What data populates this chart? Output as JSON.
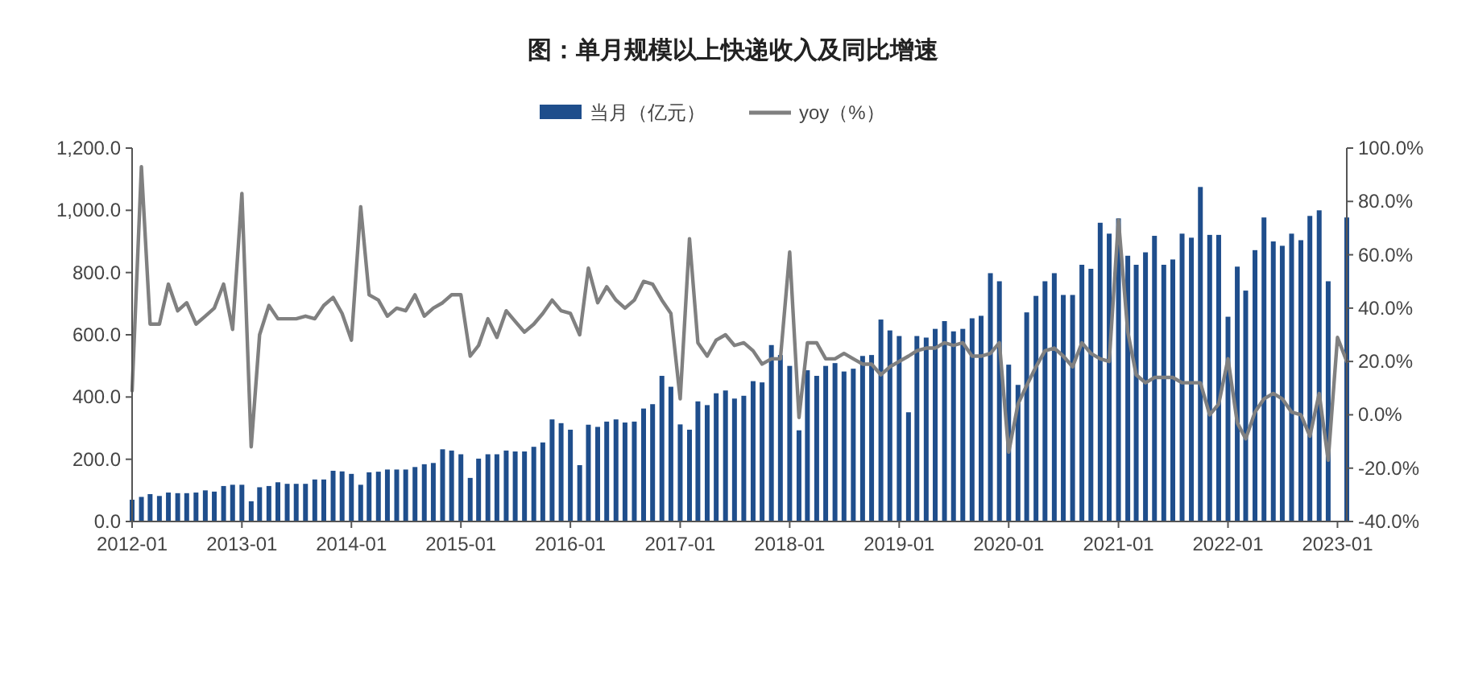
{
  "chart_data": {
    "type": "bar",
    "title": "图：单月规模以上快递收入及同比增速",
    "x": [
      "2012-01",
      "2012-02",
      "2012-03",
      "2012-04",
      "2012-05",
      "2012-06",
      "2012-07",
      "2012-08",
      "2012-09",
      "2012-10",
      "2012-11",
      "2012-12",
      "2013-01",
      "2013-02",
      "2013-03",
      "2013-04",
      "2013-05",
      "2013-06",
      "2013-07",
      "2013-08",
      "2013-09",
      "2013-10",
      "2013-11",
      "2013-12",
      "2014-01",
      "2014-02",
      "2014-03",
      "2014-04",
      "2014-05",
      "2014-06",
      "2014-07",
      "2014-08",
      "2014-09",
      "2014-10",
      "2014-11",
      "2014-12",
      "2015-01",
      "2015-02",
      "2015-03",
      "2015-04",
      "2015-05",
      "2015-06",
      "2015-07",
      "2015-08",
      "2015-09",
      "2015-10",
      "2015-11",
      "2015-12",
      "2016-01",
      "2016-02",
      "2016-03",
      "2016-04",
      "2016-05",
      "2016-06",
      "2016-07",
      "2016-08",
      "2016-09",
      "2016-10",
      "2016-11",
      "2016-12",
      "2017-01",
      "2017-02",
      "2017-03",
      "2017-04",
      "2017-05",
      "2017-06",
      "2017-07",
      "2017-08",
      "2017-09",
      "2017-10",
      "2017-11",
      "2017-12",
      "2018-01",
      "2018-02",
      "2018-03",
      "2018-04",
      "2018-05",
      "2018-06",
      "2018-07",
      "2018-08",
      "2018-09",
      "2018-10",
      "2018-11",
      "2018-12",
      "2019-01",
      "2019-02",
      "2019-03",
      "2019-04",
      "2019-05",
      "2019-06",
      "2019-07",
      "2019-08",
      "2019-09",
      "2019-10",
      "2019-11",
      "2019-12",
      "2020-01",
      "2020-02",
      "2020-03",
      "2020-04",
      "2020-05",
      "2020-06",
      "2020-07",
      "2020-08",
      "2020-09",
      "2020-10",
      "2020-11",
      "2020-12",
      "2021-01",
      "2021-02",
      "2021-03",
      "2021-04",
      "2021-05",
      "2021-06",
      "2021-07",
      "2021-08",
      "2021-09",
      "2021-10",
      "2021-11",
      "2021-12",
      "2022-01",
      "2022-02",
      "2022-03",
      "2022-04",
      "2022-05",
      "2022-06",
      "2022-07",
      "2022-08",
      "2022-09",
      "2022-10",
      "2022-11",
      "2022-12",
      "2023-01",
      "2023-02"
    ],
    "series": [
      {
        "name": "当月（亿元）",
        "color": "#1f4e8c",
        "values": [
          70,
          79,
          88,
          82,
          93,
          91,
          91,
          93,
          100,
          96,
          114,
          118,
          118,
          65,
          110,
          114,
          126,
          121,
          121,
          121,
          135,
          135,
          163,
          161,
          153,
          118,
          158,
          160,
          167,
          167,
          167,
          175,
          184,
          188,
          232,
          228,
          216,
          140,
          202,
          216,
          216,
          228,
          225,
          225,
          240,
          254,
          328,
          316,
          295,
          181,
          311,
          304,
          321,
          328,
          318,
          321,
          363,
          377,
          468,
          433,
          312,
          295,
          386,
          374,
          412,
          421,
          395,
          404,
          451,
          447,
          567,
          535,
          500,
          293,
          486,
          468,
          500,
          509,
          482,
          491,
          532,
          535,
          649,
          614,
          596,
          351,
          596,
          591,
          619,
          644,
          611,
          619,
          653,
          661,
          798,
          772,
          504,
          439,
          672,
          725,
          772,
          798,
          728,
          728,
          825,
          812,
          960,
          925,
          974,
          854,
          825,
          865,
          918,
          825,
          842,
          925,
          912,
          1075,
          921,
          921,
          658,
          819,
          742,
          872,
          977,
          900,
          886,
          925,
          904,
          982,
          1000,
          772,
          null,
          977
        ]
      },
      {
        "name": "yoy（%）",
        "type": "line",
        "axis": "y2",
        "color": "#808080",
        "values": [
          9,
          93,
          34,
          34,
          49,
          39,
          42,
          34,
          37,
          40,
          49,
          32,
          83,
          -12,
          30,
          41,
          36,
          36,
          36,
          37,
          36,
          41,
          44,
          38,
          28,
          78,
          45,
          43,
          37,
          40,
          39,
          45,
          37,
          40,
          42,
          45,
          45,
          22,
          26,
          36,
          29,
          39,
          35,
          31,
          34,
          38,
          43,
          39,
          38,
          30,
          55,
          42,
          48,
          43,
          40,
          43,
          50,
          49,
          43,
          38,
          6,
          66,
          27,
          22,
          28,
          30,
          26,
          27,
          24,
          19,
          21,
          21,
          61,
          -1,
          27,
          27,
          21,
          21,
          23,
          21,
          19,
          19,
          15,
          18,
          20,
          22,
          24,
          25,
          25,
          27,
          26,
          27,
          22,
          22,
          23,
          27,
          -14,
          4,
          11,
          18,
          24,
          25,
          22,
          18,
          27,
          23,
          21,
          20,
          73,
          31,
          15,
          12,
          14,
          14,
          14,
          12,
          12,
          12,
          0,
          4,
          21,
          -3,
          -9,
          1,
          6,
          8,
          6,
          1,
          0,
          -8,
          8,
          -17,
          29,
          20
        ]
      }
    ],
    "xlim": [
      "2012-01",
      "2023-02"
    ],
    "xticks": [
      "2012-01",
      "2013-01",
      "2014-01",
      "2015-01",
      "2016-01",
      "2017-01",
      "2018-01",
      "2019-01",
      "2020-01",
      "2021-01",
      "2022-01",
      "2023-01"
    ],
    "ylim": [
      0,
      1200
    ],
    "yticks": [
      {
        "value": 0,
        "label": "0.0"
      },
      {
        "value": 200,
        "label": "200.0"
      },
      {
        "value": 400,
        "label": "400.0"
      },
      {
        "value": 600,
        "label": "600.0"
      },
      {
        "value": 800,
        "label": "800.0"
      },
      {
        "value": 1000,
        "label": "1,000.0"
      },
      {
        "value": 1200,
        "label": "1,200.0"
      }
    ],
    "y2lim": [
      -40,
      100
    ],
    "y2ticks": [
      {
        "value": -40,
        "label": "-40.0%"
      },
      {
        "value": -20,
        "label": "-20.0%"
      },
      {
        "value": 0,
        "label": "0.0%"
      },
      {
        "value": 20,
        "label": "20.0%"
      },
      {
        "value": 40,
        "label": "40.0%"
      },
      {
        "value": 60,
        "label": "60.0%"
      },
      {
        "value": 80,
        "label": "80.0%"
      },
      {
        "value": 100,
        "label": "100.0%"
      }
    ],
    "legend": "top",
    "grid": false
  }
}
